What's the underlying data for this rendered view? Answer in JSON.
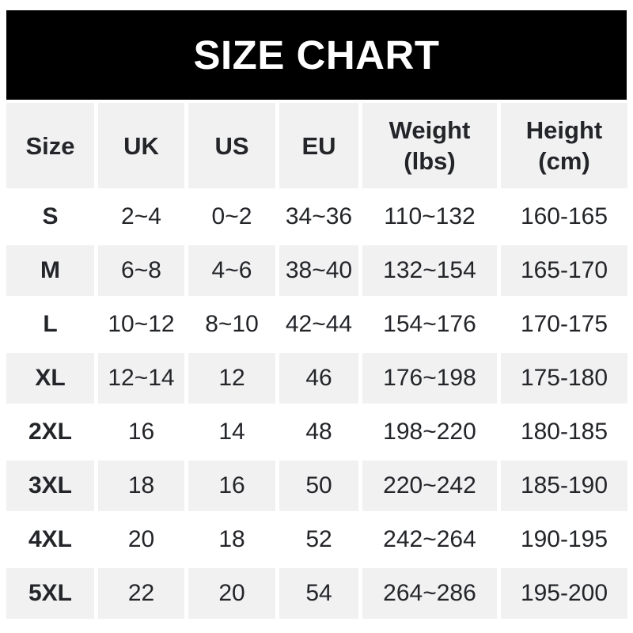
{
  "title": "SIZE CHART",
  "colors": {
    "banner_bg": "#000000",
    "banner_text": "#ffffff",
    "stripe_bg": "#f1f1f2",
    "text": "#232529"
  },
  "chart_data": {
    "type": "table",
    "title": "SIZE CHART",
    "columns": [
      {
        "label": "Size",
        "sub": ""
      },
      {
        "label": "UK",
        "sub": ""
      },
      {
        "label": "US",
        "sub": ""
      },
      {
        "label": "EU",
        "sub": ""
      },
      {
        "label": "Weight",
        "sub": "(lbs)"
      },
      {
        "label": "Height",
        "sub": "(cm)"
      }
    ],
    "rows": [
      [
        "S",
        "2~4",
        "0~2",
        "34~36",
        "110~132",
        "160-165"
      ],
      [
        "M",
        "6~8",
        "4~6",
        "38~40",
        "132~154",
        "165-170"
      ],
      [
        "L",
        "10~12",
        "8~10",
        "42~44",
        "154~176",
        "170-175"
      ],
      [
        "XL",
        "12~14",
        "12",
        "46",
        "176~198",
        "175-180"
      ],
      [
        "2XL",
        "16",
        "14",
        "48",
        "198~220",
        "180-185"
      ],
      [
        "3XL",
        "18",
        "16",
        "50",
        "220~242",
        "185-190"
      ],
      [
        "4XL",
        "20",
        "18",
        "52",
        "242~264",
        "190-195"
      ],
      [
        "5XL",
        "22",
        "20",
        "54",
        "264~286",
        "195-200"
      ]
    ]
  }
}
